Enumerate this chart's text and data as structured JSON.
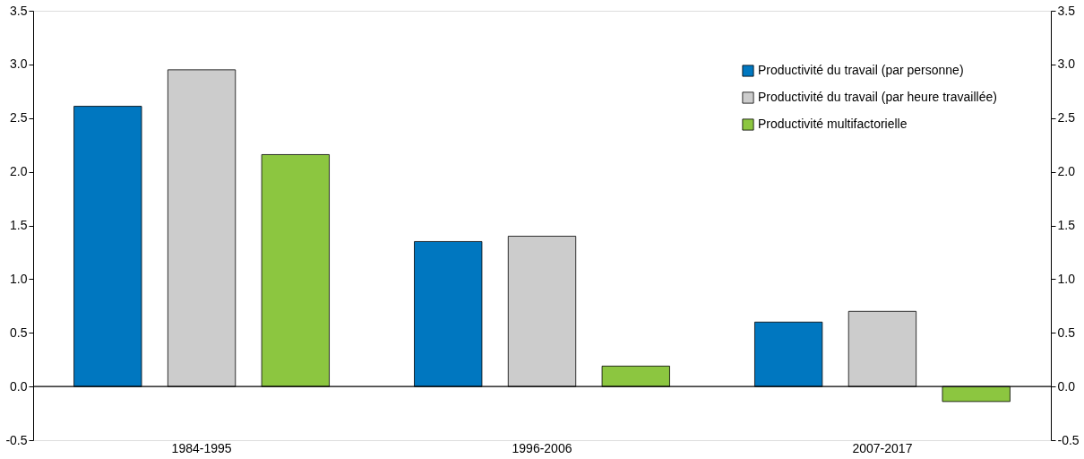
{
  "chart_data": {
    "type": "bar",
    "categories": [
      "1984-1995",
      "1996-2006",
      "2007-2017"
    ],
    "series": [
      {
        "name": "Productivité du travail (par personne)",
        "color": "#0077c0",
        "values": [
          2.61,
          1.35,
          0.6
        ]
      },
      {
        "name": "Productivité du travail (par heure travaillée)",
        "color": "#cccccc",
        "values": [
          2.95,
          1.4,
          0.7
        ]
      },
      {
        "name": "Productivité multifactorielle",
        "color": "#8cc640",
        "values": [
          2.16,
          0.19,
          -0.14
        ]
      }
    ],
    "ylim": [
      -0.5,
      3.5
    ],
    "yticks": [
      -0.5,
      {
        "value": 0,
        "label": "0.0"
      },
      0.5,
      {
        "value": 1,
        "label": "1.0"
      },
      1.5,
      {
        "value": 2,
        "label": "2.0"
      },
      2.5,
      {
        "value": 3,
        "label": "3.0"
      },
      3.5
    ],
    "y2lim": [
      -0.5,
      3.5
    ],
    "y2ticks": [
      -0.5,
      {
        "value": 0,
        "label": "0.0"
      },
      0.5,
      {
        "value": 1,
        "label": "1.0"
      },
      1.5,
      {
        "value": 2,
        "label": "2.0"
      },
      2.5,
      {
        "value": 3,
        "label": "3.0"
      },
      3.5
    ],
    "legend": "top right"
  }
}
